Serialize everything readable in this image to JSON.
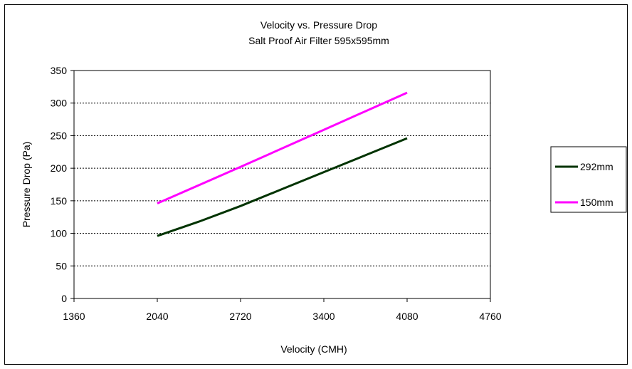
{
  "chart_data": {
    "type": "line",
    "title": "Velocity vs. Pressure Drop",
    "subtitle": "Salt Proof Air Filter 595x595mm",
    "xlabel": "Velocity (CMH)",
    "ylabel": "Pressure Drop (Pa)",
    "xlim": [
      1360,
      4760
    ],
    "ylim": [
      0,
      350
    ],
    "xticks": [
      "1360",
      "2040",
      "2720",
      "3400",
      "4080",
      "4760"
    ],
    "yticks": [
      "0",
      "50",
      "100",
      "150",
      "200",
      "250",
      "300",
      "350"
    ],
    "grid": true,
    "legend_position": "right",
    "series": [
      {
        "name": "292mm",
        "color": "#003300",
        "points": [
          [
            2040,
            96
          ],
          [
            2380,
            118
          ],
          [
            2720,
            142
          ],
          [
            3060,
            168
          ],
          [
            3400,
            194
          ],
          [
            3740,
            220
          ],
          [
            4080,
            246
          ]
        ]
      },
      {
        "name": "150mm",
        "color": "#ff00ff",
        "points": [
          [
            2040,
            146
          ],
          [
            2720,
            202
          ],
          [
            3400,
            259
          ],
          [
            4080,
            316
          ]
        ]
      }
    ]
  }
}
